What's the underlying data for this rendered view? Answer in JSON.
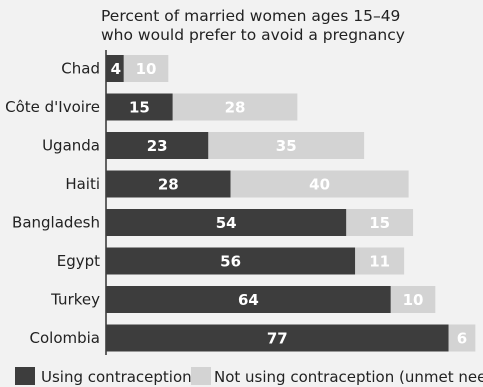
{
  "chart_data": {
    "type": "bar",
    "orientation": "horizontal",
    "stacked": true,
    "title_lines": [
      "Percent of married women ages 15–49",
      "who would prefer to avoid a pregnancy"
    ],
    "categories": [
      "Chad",
      "Côte d'Ivoire",
      "Uganda",
      "Haiti",
      "Bangladesh",
      "Egypt",
      "Turkey",
      "Colombia"
    ],
    "series": [
      {
        "name": "Using contraception",
        "values": [
          4,
          15,
          23,
          28,
          54,
          56,
          64,
          77
        ],
        "color": "#3d3d3d",
        "label_color": "#ffffff"
      },
      {
        "name": "Not using contraception (unmet need)",
        "values": [
          10,
          28,
          35,
          40,
          15,
          11,
          10,
          6
        ],
        "color": "#d3d3d3",
        "label_color": "#ffffff"
      }
    ],
    "xlim": [
      0,
      100
    ],
    "grid": false,
    "legend_position": "bottom",
    "background": "#f2f2f2"
  }
}
